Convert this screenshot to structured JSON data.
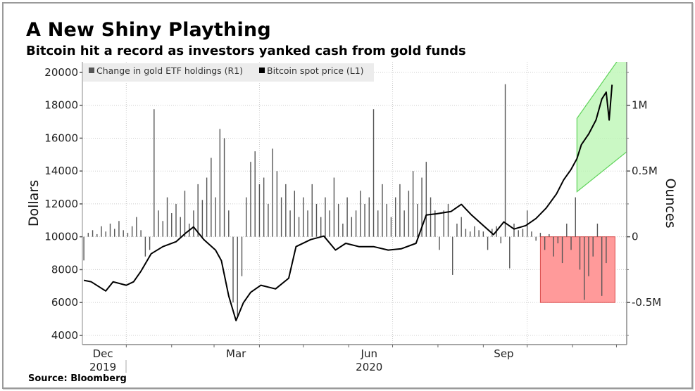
{
  "header": {
    "title": "A New Shiny Plaything",
    "subtitle": "Bitcoin hit a record as investors yanked cash from gold funds"
  },
  "footer": {
    "source": "Source: Bloomberg"
  },
  "colors": {
    "bars": "#555555",
    "line": "#000000",
    "green_band": "#b8f5b0",
    "green_edge": "#5fd35a",
    "red_box": "#ff9a9a",
    "red_edge": "#d84a4a",
    "legend_bg": "#ececec",
    "grid": "#cccccc"
  },
  "chart_data": {
    "type": "bar+line",
    "title": "A New Shiny Plaything",
    "subtitle": "Bitcoin hit a record as investors yanked cash from gold funds",
    "ylabel_left": "Dollars",
    "ylabel_right": "Ounces",
    "legend": [
      {
        "label": "Change in gold ETF holdings (R1)",
        "color": "#555555"
      },
      {
        "label": "Bitcoin spot price (L1)",
        "color": "#000000"
      }
    ],
    "legend_placement": "top-left",
    "x_range": [
      "2019-12-02",
      "2020-12-08"
    ],
    "x_ticks": [
      {
        "label": "Dec",
        "sub": "2019",
        "center": "2019-12-16"
      },
      {
        "label": "Mar",
        "sub": "",
        "center": "2020-03-16"
      },
      {
        "label": "Jun",
        "sub": "2020",
        "center": "2020-06-15"
      },
      {
        "label": "Sep",
        "sub": "",
        "center": "2020-09-15"
      }
    ],
    "x_gridlines": [
      "2020-01-01",
      "2020-04-01",
      "2020-07-01",
      "2020-10-01"
    ],
    "ylim_left": [
      3440,
      20640
    ],
    "yticks_left": [
      4000,
      6000,
      8000,
      10000,
      12000,
      14000,
      16000,
      18000,
      20000
    ],
    "yticks_right": [
      {
        "value": -0.5,
        "label": "-0.5M"
      },
      {
        "value": 0,
        "label": "0"
      },
      {
        "value": 0.5,
        "label": "0.5M"
      },
      {
        "value": 1,
        "label": "1M"
      }
    ],
    "right_axis_unit": "M ounces",
    "bitcoin_price": [
      [
        "2019-12-03",
        7350
      ],
      [
        "2019-12-08",
        7260
      ],
      [
        "2019-12-18",
        6700
      ],
      [
        "2019-12-23",
        7260
      ],
      [
        "2020-01-01",
        7050
      ],
      [
        "2020-01-06",
        7260
      ],
      [
        "2020-01-11",
        7900
      ],
      [
        "2020-01-18",
        8970
      ],
      [
        "2020-01-26",
        9400
      ],
      [
        "2020-02-04",
        9700
      ],
      [
        "2020-02-11",
        10250
      ],
      [
        "2020-02-16",
        10600
      ],
      [
        "2020-02-23",
        9830
      ],
      [
        "2020-03-02",
        9190
      ],
      [
        "2020-03-06",
        8550
      ],
      [
        "2020-03-11",
        6400
      ],
      [
        "2020-03-16",
        4900
      ],
      [
        "2020-03-21",
        5980
      ],
      [
        "2020-03-26",
        6620
      ],
      [
        "2020-04-02",
        7050
      ],
      [
        "2020-04-12",
        6830
      ],
      [
        "2020-04-21",
        7480
      ],
      [
        "2020-04-26",
        9400
      ],
      [
        "2020-05-06",
        9830
      ],
      [
        "2020-05-15",
        10040
      ],
      [
        "2020-05-23",
        9190
      ],
      [
        "2020-05-30",
        9600
      ],
      [
        "2020-06-08",
        9400
      ],
      [
        "2020-06-18",
        9400
      ],
      [
        "2020-06-28",
        9190
      ],
      [
        "2020-07-07",
        9270
      ],
      [
        "2020-07-17",
        9600
      ],
      [
        "2020-07-24",
        11320
      ],
      [
        "2020-07-31",
        11400
      ],
      [
        "2020-08-10",
        11540
      ],
      [
        "2020-08-17",
        11970
      ],
      [
        "2020-08-24",
        11320
      ],
      [
        "2020-09-01",
        10680
      ],
      [
        "2020-09-08",
        10130
      ],
      [
        "2020-09-15",
        10900
      ],
      [
        "2020-09-22",
        10470
      ],
      [
        "2020-09-30",
        10680
      ],
      [
        "2020-10-07",
        11110
      ],
      [
        "2020-10-14",
        11750
      ],
      [
        "2020-10-21",
        12610
      ],
      [
        "2020-10-26",
        13470
      ],
      [
        "2020-10-31",
        14100
      ],
      [
        "2020-11-04",
        14750
      ],
      [
        "2020-11-07",
        15600
      ],
      [
        "2020-11-12",
        16250
      ],
      [
        "2020-11-17",
        17100
      ],
      [
        "2020-11-21",
        18380
      ],
      [
        "2020-11-24",
        18800
      ],
      [
        "2020-11-26",
        17100
      ],
      [
        "2020-11-28",
        19250
      ]
    ],
    "gold_etf_change": {
      "start_date": "2019-12-03",
      "step_days": 3,
      "values": [
        -0.18,
        0.03,
        0.05,
        0.02,
        0.08,
        0.04,
        0.1,
        0.06,
        0.12,
        0.05,
        0.03,
        0.08,
        0.15,
        0.05,
        -0.15,
        -0.1,
        0.97,
        0.2,
        0.12,
        0.3,
        0.18,
        0.25,
        0.15,
        0.35,
        0.1,
        0.2,
        0.4,
        0.28,
        0.45,
        0.6,
        0.3,
        0.82,
        0.75,
        0.2,
        -0.5,
        -0.6,
        -0.3,
        0.3,
        0.57,
        0.65,
        0.4,
        0.45,
        0.25,
        0.67,
        0.5,
        0.3,
        0.4,
        0.2,
        0.35,
        0.15,
        0.3,
        0.2,
        0.4,
        0.25,
        0.15,
        0.3,
        0.2,
        0.45,
        0.25,
        0.1,
        0.3,
        0.15,
        0.2,
        0.35,
        0.25,
        0.3,
        0.97,
        0.2,
        0.4,
        0.25,
        0.15,
        0.3,
        0.4,
        0.2,
        0.35,
        0.5,
        0.25,
        0.45,
        0.57,
        0.3,
        0.2,
        -0.1,
        0.2,
        0.25,
        -0.29,
        0.1,
        0.15,
        0.06,
        0.04,
        0.08,
        0.05,
        0.04,
        -0.1,
        0.06,
        0.08,
        -0.05,
        1.16,
        -0.24,
        0.1,
        0.05,
        0.06,
        0.2,
        0.04,
        -0.03,
        0.03,
        -0.1,
        0.02,
        -0.15,
        -0.05,
        -0.2,
        0.1,
        -0.1,
        0.3,
        -0.25,
        -0.48,
        -0.3,
        -0.15,
        0.1,
        -0.45,
        -0.2
      ]
    },
    "annotations": [
      {
        "type": "band",
        "axis": "left",
        "color": "green",
        "from": "2020-11-04",
        "to": "2020-12-08",
        "upper": [
          17200,
          21500
        ],
        "lower": [
          12740,
          15170
        ]
      },
      {
        "type": "box",
        "axis": "right",
        "color": "red",
        "from": "2020-10-10",
        "to": "2020-11-30",
        "range": [
          -0.5,
          0
        ]
      }
    ]
  }
}
